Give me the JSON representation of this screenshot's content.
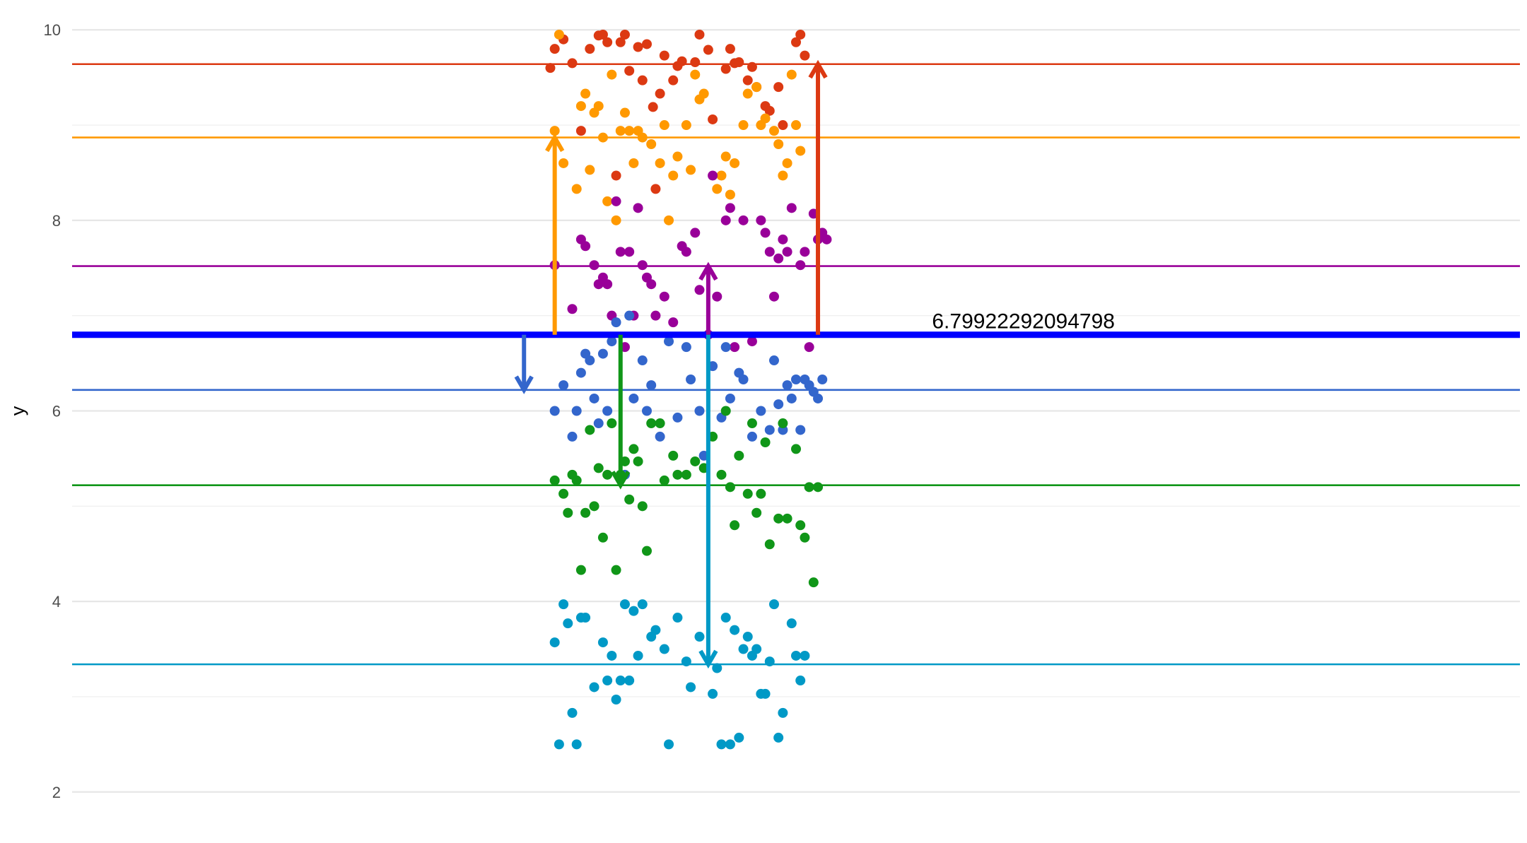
{
  "chart_data": {
    "type": "scatter",
    "title": "",
    "xlabel": "",
    "ylabel": "y",
    "ylim": [
      1.85,
      10.15
    ],
    "xlim": [
      -0.65,
      1.0
    ],
    "y_ticks": [
      2,
      4,
      6,
      8,
      10
    ],
    "y_minor_ticks": [
      3,
      5,
      7,
      9
    ],
    "grid": true,
    "legend": "none",
    "reference_line": {
      "y": 6.79922292094798,
      "color": "#0000ff",
      "label": "6.79922292094798",
      "label_x": 0.33
    },
    "series": [
      {
        "color": "#dc3912",
        "mean": 9.64,
        "arrow_x": 0.2,
        "points": [
          [
            -0.105,
            9.6
          ],
          [
            -0.1,
            9.8
          ],
          [
            -0.09,
            9.9
          ],
          [
            -0.08,
            9.65
          ],
          [
            -0.07,
            8.94
          ],
          [
            -0.06,
            9.8
          ],
          [
            -0.05,
            9.94
          ],
          [
            -0.045,
            9.95
          ],
          [
            -0.04,
            9.87
          ],
          [
            -0.03,
            8.47
          ],
          [
            -0.025,
            9.87
          ],
          [
            -0.02,
            9.95
          ],
          [
            -0.015,
            9.57
          ],
          [
            -0.005,
            9.82
          ],
          [
            0.0,
            9.47
          ],
          [
            0.005,
            9.85
          ],
          [
            0.012,
            9.19
          ],
          [
            0.015,
            8.33
          ],
          [
            0.02,
            9.33
          ],
          [
            0.025,
            9.73
          ],
          [
            0.035,
            9.47
          ],
          [
            0.04,
            9.62
          ],
          [
            0.045,
            9.67
          ],
          [
            0.06,
            9.66
          ],
          [
            0.065,
            9.95
          ],
          [
            0.075,
            9.79
          ],
          [
            0.08,
            9.06
          ],
          [
            0.095,
            9.59
          ],
          [
            0.1,
            9.8
          ],
          [
            0.105,
            9.65
          ],
          [
            0.11,
            9.66
          ],
          [
            0.12,
            9.47
          ],
          [
            0.125,
            9.61
          ],
          [
            0.13,
            9.4
          ],
          [
            0.14,
            9.2
          ],
          [
            0.145,
            9.15
          ],
          [
            0.155,
            9.4
          ],
          [
            0.16,
            9.0
          ],
          [
            0.175,
            9.87
          ],
          [
            0.18,
            9.95
          ],
          [
            0.185,
            9.73
          ]
        ]
      },
      {
        "color": "#ff9900",
        "mean": 8.87,
        "arrow_x": -0.1,
        "points": [
          [
            -0.1,
            8.94
          ],
          [
            -0.095,
            9.95
          ],
          [
            -0.09,
            8.6
          ],
          [
            -0.075,
            8.33
          ],
          [
            -0.07,
            9.2
          ],
          [
            -0.065,
            9.33
          ],
          [
            -0.06,
            8.53
          ],
          [
            -0.055,
            9.13
          ],
          [
            -0.05,
            9.2
          ],
          [
            -0.045,
            8.87
          ],
          [
            -0.04,
            8.2
          ],
          [
            -0.035,
            9.53
          ],
          [
            -0.03,
            8.0
          ],
          [
            -0.025,
            8.94
          ],
          [
            -0.02,
            9.13
          ],
          [
            -0.015,
            8.94
          ],
          [
            -0.01,
            8.6
          ],
          [
            -0.005,
            8.94
          ],
          [
            0.0,
            8.87
          ],
          [
            0.01,
            8.8
          ],
          [
            0.02,
            8.6
          ],
          [
            0.025,
            9.0
          ],
          [
            0.03,
            8.0
          ],
          [
            0.035,
            8.47
          ],
          [
            0.04,
            8.67
          ],
          [
            0.05,
            9.0
          ],
          [
            0.055,
            8.53
          ],
          [
            0.06,
            9.53
          ],
          [
            0.065,
            9.27
          ],
          [
            0.07,
            9.33
          ],
          [
            0.085,
            8.33
          ],
          [
            0.09,
            8.47
          ],
          [
            0.095,
            8.67
          ],
          [
            0.1,
            8.27
          ],
          [
            0.105,
            8.6
          ],
          [
            0.115,
            9.0
          ],
          [
            0.12,
            9.33
          ],
          [
            0.13,
            9.4
          ],
          [
            0.135,
            9.0
          ],
          [
            0.14,
            9.07
          ],
          [
            0.15,
            8.94
          ],
          [
            0.155,
            8.8
          ],
          [
            0.16,
            8.47
          ],
          [
            0.165,
            8.6
          ],
          [
            0.17,
            9.53
          ],
          [
            0.175,
            9.0
          ],
          [
            0.18,
            8.73
          ]
        ]
      },
      {
        "color": "#990099",
        "mean": 7.52,
        "arrow_x": 0.075,
        "points": [
          [
            -0.1,
            7.53
          ],
          [
            -0.08,
            7.07
          ],
          [
            -0.07,
            7.8
          ],
          [
            -0.065,
            7.73
          ],
          [
            -0.055,
            7.53
          ],
          [
            -0.05,
            7.33
          ],
          [
            -0.045,
            7.4
          ],
          [
            -0.04,
            7.33
          ],
          [
            -0.035,
            7.0
          ],
          [
            -0.03,
            8.2
          ],
          [
            -0.025,
            7.67
          ],
          [
            -0.02,
            6.67
          ],
          [
            -0.015,
            7.67
          ],
          [
            -0.01,
            7.0
          ],
          [
            -0.005,
            8.13
          ],
          [
            0.0,
            7.53
          ],
          [
            0.005,
            7.4
          ],
          [
            0.01,
            7.33
          ],
          [
            0.015,
            7.0
          ],
          [
            0.025,
            7.2
          ],
          [
            0.035,
            6.93
          ],
          [
            0.045,
            7.73
          ],
          [
            0.05,
            7.67
          ],
          [
            0.06,
            7.87
          ],
          [
            0.065,
            7.27
          ],
          [
            0.075,
            6.8
          ],
          [
            0.08,
            8.47
          ],
          [
            0.085,
            7.2
          ],
          [
            0.095,
            8.0
          ],
          [
            0.1,
            8.13
          ],
          [
            0.105,
            6.67
          ],
          [
            0.115,
            8.0
          ],
          [
            0.125,
            6.73
          ],
          [
            0.135,
            8.0
          ],
          [
            0.14,
            7.87
          ],
          [
            0.145,
            7.67
          ],
          [
            0.15,
            7.2
          ],
          [
            0.155,
            7.6
          ],
          [
            0.16,
            7.8
          ],
          [
            0.165,
            7.67
          ],
          [
            0.17,
            8.13
          ],
          [
            0.18,
            7.53
          ],
          [
            0.185,
            7.67
          ],
          [
            0.19,
            6.67
          ],
          [
            0.195,
            8.07
          ],
          [
            0.2,
            7.8
          ],
          [
            0.205,
            7.87
          ],
          [
            0.21,
            7.8
          ]
        ]
      },
      {
        "color": "#3366cc",
        "mean": 6.22,
        "arrow_x": -0.135,
        "points": [
          [
            -0.1,
            6.0
          ],
          [
            -0.09,
            6.27
          ],
          [
            -0.08,
            5.73
          ],
          [
            -0.075,
            6.0
          ],
          [
            -0.07,
            6.4
          ],
          [
            -0.065,
            6.6
          ],
          [
            -0.06,
            6.53
          ],
          [
            -0.055,
            6.13
          ],
          [
            -0.05,
            5.87
          ],
          [
            -0.045,
            6.6
          ],
          [
            -0.04,
            6.0
          ],
          [
            -0.035,
            6.73
          ],
          [
            -0.03,
            6.93
          ],
          [
            -0.02,
            5.33
          ],
          [
            -0.015,
            7.0
          ],
          [
            -0.01,
            6.13
          ],
          [
            0.0,
            6.53
          ],
          [
            0.005,
            6.0
          ],
          [
            0.01,
            6.27
          ],
          [
            0.02,
            5.73
          ],
          [
            0.03,
            6.73
          ],
          [
            0.04,
            5.93
          ],
          [
            0.05,
            6.67
          ],
          [
            0.055,
            6.33
          ],
          [
            0.065,
            6.0
          ],
          [
            0.07,
            5.53
          ],
          [
            0.08,
            6.47
          ],
          [
            0.09,
            5.93
          ],
          [
            0.095,
            6.67
          ],
          [
            0.1,
            6.13
          ],
          [
            0.11,
            6.4
          ],
          [
            0.115,
            6.33
          ],
          [
            0.125,
            5.73
          ],
          [
            0.135,
            6.0
          ],
          [
            0.145,
            5.8
          ],
          [
            0.15,
            6.53
          ],
          [
            0.155,
            6.07
          ],
          [
            0.16,
            5.8
          ],
          [
            0.165,
            6.27
          ],
          [
            0.17,
            6.13
          ],
          [
            0.175,
            6.33
          ],
          [
            0.18,
            5.8
          ],
          [
            0.185,
            6.33
          ],
          [
            0.19,
            6.27
          ],
          [
            0.195,
            6.2
          ],
          [
            0.2,
            6.13
          ],
          [
            0.205,
            6.33
          ]
        ]
      },
      {
        "color": "#109618",
        "mean": 5.22,
        "arrow_x": -0.025,
        "points": [
          [
            -0.1,
            5.27
          ],
          [
            -0.09,
            5.13
          ],
          [
            -0.085,
            4.93
          ],
          [
            -0.08,
            5.33
          ],
          [
            -0.075,
            5.27
          ],
          [
            -0.07,
            4.33
          ],
          [
            -0.065,
            4.93
          ],
          [
            -0.06,
            5.8
          ],
          [
            -0.055,
            5.0
          ],
          [
            -0.05,
            5.4
          ],
          [
            -0.045,
            4.67
          ],
          [
            -0.04,
            5.33
          ],
          [
            -0.035,
            5.87
          ],
          [
            -0.03,
            4.33
          ],
          [
            -0.025,
            5.33
          ],
          [
            -0.02,
            5.47
          ],
          [
            -0.015,
            5.07
          ],
          [
            -0.01,
            5.6
          ],
          [
            -0.005,
            5.47
          ],
          [
            0.0,
            5.0
          ],
          [
            0.005,
            4.53
          ],
          [
            0.01,
            5.87
          ],
          [
            0.02,
            5.87
          ],
          [
            0.025,
            5.27
          ],
          [
            0.035,
            5.53
          ],
          [
            0.04,
            5.33
          ],
          [
            0.05,
            5.33
          ],
          [
            0.06,
            5.47
          ],
          [
            0.07,
            5.4
          ],
          [
            0.08,
            5.73
          ],
          [
            0.09,
            5.33
          ],
          [
            0.095,
            6.0
          ],
          [
            0.1,
            5.2
          ],
          [
            0.105,
            4.8
          ],
          [
            0.11,
            5.53
          ],
          [
            0.12,
            5.13
          ],
          [
            0.125,
            5.87
          ],
          [
            0.13,
            4.93
          ],
          [
            0.135,
            5.13
          ],
          [
            0.14,
            5.67
          ],
          [
            0.145,
            4.6
          ],
          [
            0.155,
            4.87
          ],
          [
            0.16,
            5.87
          ],
          [
            0.165,
            4.87
          ],
          [
            0.175,
            5.6
          ],
          [
            0.18,
            4.8
          ],
          [
            0.185,
            4.67
          ],
          [
            0.19,
            5.2
          ],
          [
            0.195,
            4.2
          ],
          [
            0.2,
            5.2
          ]
        ]
      },
      {
        "color": "#0099c6",
        "mean": 3.34,
        "arrow_x": 0.075,
        "points": [
          [
            -0.1,
            3.57
          ],
          [
            -0.095,
            2.5
          ],
          [
            -0.09,
            3.97
          ],
          [
            -0.085,
            3.77
          ],
          [
            -0.08,
            2.83
          ],
          [
            -0.075,
            2.5
          ],
          [
            -0.07,
            3.83
          ],
          [
            -0.065,
            3.83
          ],
          [
            -0.055,
            3.1
          ],
          [
            -0.045,
            3.57
          ],
          [
            -0.04,
            3.17
          ],
          [
            -0.035,
            3.43
          ],
          [
            -0.03,
            2.97
          ],
          [
            -0.025,
            3.17
          ],
          [
            -0.02,
            3.97
          ],
          [
            -0.015,
            3.17
          ],
          [
            -0.01,
            3.9
          ],
          [
            -0.005,
            3.43
          ],
          [
            0.0,
            3.97
          ],
          [
            0.01,
            3.63
          ],
          [
            0.015,
            3.7
          ],
          [
            0.025,
            3.5
          ],
          [
            0.03,
            2.5
          ],
          [
            0.04,
            3.83
          ],
          [
            0.05,
            3.37
          ],
          [
            0.055,
            3.1
          ],
          [
            0.065,
            3.63
          ],
          [
            0.08,
            3.03
          ],
          [
            0.085,
            3.3
          ],
          [
            0.09,
            2.5
          ],
          [
            0.095,
            3.83
          ],
          [
            0.1,
            2.5
          ],
          [
            0.105,
            3.7
          ],
          [
            0.11,
            2.57
          ],
          [
            0.115,
            3.5
          ],
          [
            0.12,
            3.63
          ],
          [
            0.125,
            3.43
          ],
          [
            0.13,
            3.5
          ],
          [
            0.135,
            3.03
          ],
          [
            0.14,
            3.03
          ],
          [
            0.145,
            3.37
          ],
          [
            0.15,
            3.97
          ],
          [
            0.155,
            2.57
          ],
          [
            0.16,
            2.83
          ],
          [
            0.17,
            3.77
          ],
          [
            0.175,
            3.43
          ],
          [
            0.18,
            3.17
          ],
          [
            0.185,
            3.43
          ]
        ]
      }
    ]
  }
}
